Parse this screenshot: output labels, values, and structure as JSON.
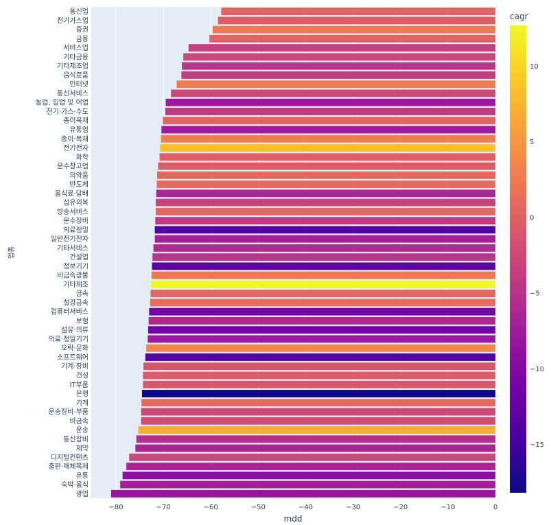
{
  "chart_data": {
    "type": "bar",
    "orientation": "horizontal",
    "xlabel": "mdd",
    "ylabel": "업종",
    "xlim": [
      -85.2,
      0
    ],
    "xticks": [
      -80,
      -70,
      -60,
      -50,
      -40,
      -30,
      -20,
      -10,
      0
    ],
    "colorbar": {
      "title": "cagr",
      "range": [
        -18.2,
        12.7
      ],
      "ticks": [
        10,
        5,
        0,
        -5,
        -10,
        -15
      ],
      "colorscale": [
        "#0d0887",
        "#46039f",
        "#7201a8",
        "#9c179e",
        "#bd3786",
        "#d8576b",
        "#ed7953",
        "#fb9f3a",
        "#fdca26",
        "#f0f921"
      ]
    },
    "categories": [
      "통신업",
      "전기가스업",
      "증권",
      "금융",
      "서비스업",
      "기타금융",
      "기타제조업",
      "음식료품",
      "인터넷",
      "통신서비스",
      "농업, 임업 및 어업",
      "전기·가스·수도",
      "종이목재",
      "유통업",
      "종이·목재",
      "전기전자",
      "화학",
      "운수창고업",
      "의약품",
      "반도체",
      "음식료·담배",
      "섬유의복",
      "방송서비스",
      "운수장비",
      "의료정밀",
      "일반전기전자",
      "기타서비스",
      "건설업",
      "정보기기",
      "비금속광물",
      "기타제조",
      "금속",
      "철강금속",
      "컴퓨터서비스",
      "보험",
      "섬유·의류",
      "의료·정밀기기",
      "오락·문화",
      "소프트웨어",
      "기계·장비",
      "건설",
      "IT부품",
      "은행",
      "기계",
      "운송장비·부품",
      "비금속",
      "운송",
      "통신장비",
      "제약",
      "디지털컨텐츠",
      "출판·매체복제",
      "유통",
      "숙박·음식",
      "광업"
    ],
    "values": [
      -57.8,
      -58.5,
      -59.6,
      -60.3,
      -64.7,
      -65.8,
      -66.1,
      -66.2,
      -67.2,
      -68.4,
      -69.5,
      -69.6,
      -70.1,
      -70.4,
      -70.5,
      -70.7,
      -70.8,
      -71.1,
      -71.3,
      -71.4,
      -71.5,
      -71.6,
      -71.6,
      -71.7,
      -71.8,
      -71.8,
      -72.1,
      -72.3,
      -72.4,
      -72.5,
      -72.6,
      -72.7,
      -72.8,
      -73.0,
      -73.1,
      -73.2,
      -73.3,
      -73.6,
      -73.8,
      -74.2,
      -74.3,
      -74.3,
      -74.5,
      -74.6,
      -74.7,
      -74.7,
      -75.3,
      -75.7,
      -75.9,
      -77.2,
      -77.8,
      -78.6,
      -79.1,
      -81.0
    ],
    "cagr": [
      0.3,
      -0.2,
      2.5,
      0.2,
      -3.5,
      -2.8,
      -4.8,
      -3.8,
      2.8,
      -2.5,
      -7.8,
      -4.2,
      0.3,
      -7.6,
      2.8,
      8.5,
      -0.2,
      -0.5,
      0.8,
      1.0,
      -6.2,
      -3.2,
      0.8,
      -4.2,
      -13.5,
      -7.0,
      -5.8,
      -4.7,
      -12.8,
      2.4,
      12.7,
      0.6,
      1.2,
      -11.2,
      -6.0,
      -11.6,
      -7.8,
      3.6,
      -13.6,
      -1.3,
      -0.5,
      -1.0,
      -18.2,
      0.8,
      -2.5,
      -2.0,
      6.8,
      -5.4,
      -6.4,
      -2.8,
      -6.5,
      -9.3,
      -7.2,
      -8.3
    ]
  }
}
